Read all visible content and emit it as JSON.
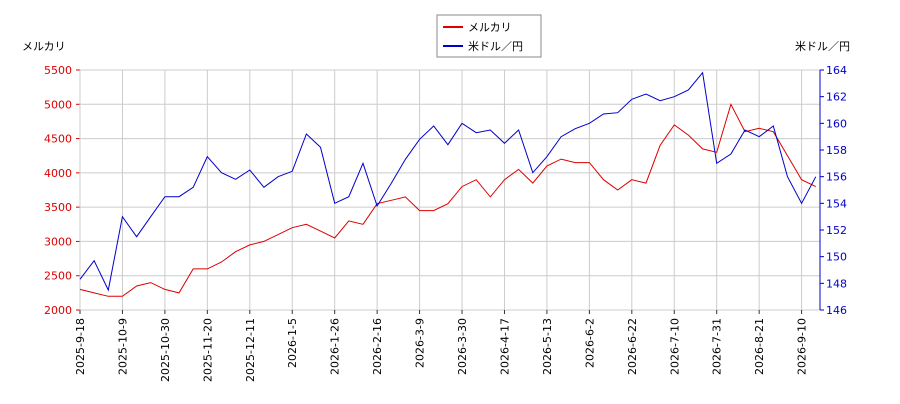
{
  "chart_data": {
    "type": "line",
    "y_label": "メルカリ",
    "y2_label": "米ドル／円",
    "categories": [
      "2025-9-18",
      null,
      null,
      "2025-10-9",
      null,
      null,
      "2025-10-30",
      null,
      null,
      "2025-11-20",
      null,
      null,
      "2025-12-11",
      null,
      null,
      "2026-1-5",
      null,
      null,
      "2026-1-26",
      null,
      null,
      "2026-2-16",
      null,
      null,
      "2026-3-9",
      null,
      null,
      "2026-3-30",
      null,
      null,
      "2026-4-17",
      null,
      null,
      "2026-5-13",
      null,
      null,
      "2026-6-2",
      null,
      null,
      "2026-6-22",
      null,
      null,
      "2026-7-10",
      null,
      null,
      "2026-7-31",
      null,
      null,
      "2026-8-21",
      null,
      null,
      "2026-9-10",
      null
    ],
    "series": [
      {
        "name": "メルカリ",
        "color": "#dd0000",
        "axis": "y",
        "values": [
          2300,
          2250,
          2200,
          2200,
          2350,
          2400,
          2300,
          2250,
          2600,
          2600,
          2700,
          2850,
          2950,
          3000,
          3100,
          3200,
          3250,
          3150,
          3050,
          3300,
          3250,
          3550,
          3600,
          3650,
          3450,
          3450,
          3550,
          3800,
          3900,
          3650,
          3900,
          4050,
          3850,
          4100,
          4200,
          4150,
          4150,
          3900,
          3750,
          3900,
          3850,
          4400,
          4700,
          4550,
          4350,
          4300,
          5000,
          4600,
          4650,
          4600,
          4250,
          3900,
          3800
        ]
      },
      {
        "name": "米ドル／円",
        "color": "#0000cc",
        "axis": "y2",
        "values": [
          148.3,
          149.7,
          147.5,
          153,
          151.5,
          153,
          154.5,
          154.5,
          155.2,
          157.5,
          156.3,
          155.8,
          156.5,
          155.2,
          156,
          156.4,
          159.2,
          158.2,
          154,
          154.5,
          157,
          153.8,
          155.5,
          157.3,
          158.8,
          159.8,
          158.4,
          160,
          159.3,
          159.5,
          158.5,
          159.5,
          156.3,
          157.5,
          159,
          159.6,
          160,
          160.7,
          160.8,
          161.8,
          162.2,
          161.7,
          162,
          162.5,
          163.8,
          157,
          157.7,
          159.5,
          159,
          159.8,
          156,
          154,
          156
        ]
      }
    ],
    "ylim": [
      2000,
      5500
    ],
    "yticks": [
      2000,
      2500,
      3000,
      3500,
      4000,
      4500,
      5000,
      5500
    ],
    "y2lim": [
      146,
      164
    ],
    "y2ticks": [
      146,
      148,
      150,
      152,
      154,
      156,
      158,
      160,
      162,
      164
    ],
    "grid": true
  }
}
